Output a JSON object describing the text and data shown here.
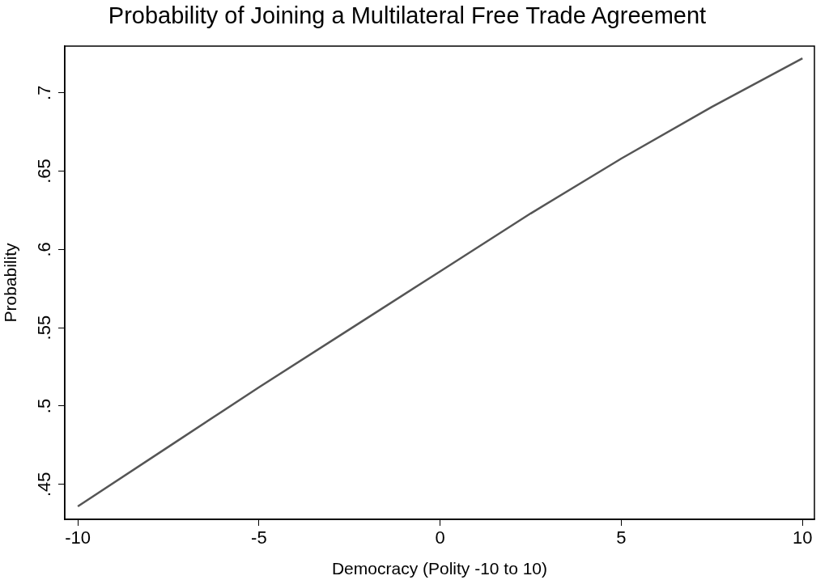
{
  "chart_data": {
    "type": "line",
    "title": "Probability of Joining a Multilateral Free Trade Agreement",
    "xlabel": "Democracy (Polity -10 to 10)",
    "ylabel": "Probability",
    "x": [
      -10,
      -7.5,
      -5,
      -2.5,
      0,
      2.5,
      5,
      7.5,
      10
    ],
    "series": [
      {
        "color": "#555555",
        "values": [
          0.436,
          0.474,
          0.512,
          0.549,
          0.586,
          0.623,
          0.658,
          0.691,
          0.722
        ]
      }
    ],
    "xlim": [
      -10.36,
      10.33
    ],
    "xticks": [
      -10,
      -5,
      0,
      5,
      10
    ],
    "ylim": [
      0.4277,
      0.7298
    ],
    "yticks": [
      {
        "value": 0.45,
        "label": ".45"
      },
      {
        "value": 0.5,
        "label": ".5"
      },
      {
        "value": 0.55,
        "label": ".55"
      },
      {
        "value": 0.6,
        "label": ".6"
      },
      {
        "value": 0.65,
        "label": ".65"
      },
      {
        "value": 0.7,
        "label": ".7"
      }
    ],
    "grid": false,
    "legend": false,
    "marker": "none",
    "line_style": "solid"
  }
}
